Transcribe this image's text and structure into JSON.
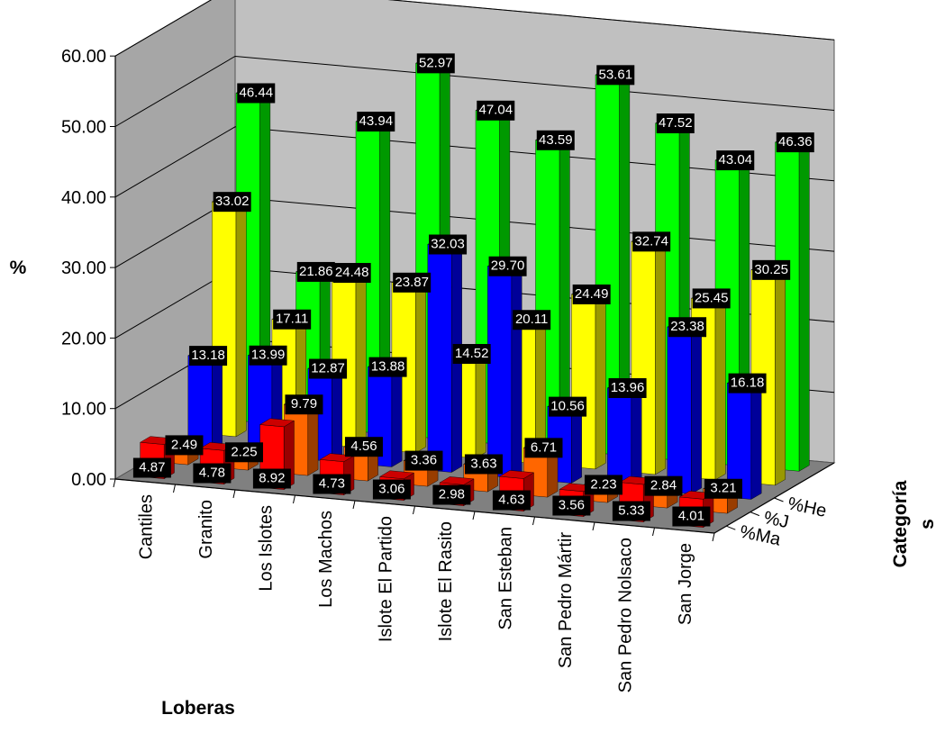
{
  "chart_data": {
    "type": "bar",
    "variant": "3d-clustered-depth",
    "xlabel": "Loberas",
    "ylabel": "%",
    "zlabel": [
      "Categoría",
      "s"
    ],
    "ylim": [
      0,
      60
    ],
    "yticks": [
      "0.00",
      "10.00",
      "20.00",
      "30.00",
      "40.00",
      "50.00",
      "60.00"
    ],
    "categories": [
      "Cantiles",
      "Granito",
      "Los Islotes",
      "Los Machos",
      "Islote El Partido",
      "Islote El Rasito",
      "San Esteban",
      "San Pedro Mártir",
      "San Pedro Nolsaco",
      "San Jorge"
    ],
    "depth_labels": [
      "%Ma",
      "%J",
      "%He"
    ],
    "series": [
      {
        "color": "#ff0000",
        "values": [
          4.87,
          4.78,
          8.92,
          4.73,
          3.06,
          2.98,
          4.63,
          3.56,
          5.33,
          4.01
        ],
        "labels": [
          "4.87",
          "4.78",
          "8.92",
          "4.73",
          "3.06",
          "2.98",
          "4.63",
          "3.56",
          "5.33",
          "4.01"
        ]
      },
      {
        "color": "#ff6600",
        "values": [
          2.49,
          2.25,
          9.79,
          4.56,
          3.36,
          3.63,
          6.71,
          2.23,
          2.84,
          3.21
        ],
        "labels": [
          "2.49",
          "2.25",
          "9.79",
          "4.56",
          "3.36",
          "3.63",
          "6.71",
          "2.23",
          "2.84",
          "3.21"
        ]
      },
      {
        "color": "#0000ff",
        "values": [
          13.18,
          13.99,
          12.87,
          13.88,
          32.03,
          29.7,
          10.56,
          13.96,
          23.38,
          16.18
        ],
        "labels": [
          "13.18",
          "13.99",
          "12.87",
          "13.88",
          "32.03",
          "29.70",
          "10.56",
          "13.96",
          "23.38",
          "16.18"
        ]
      },
      {
        "color": "#ffff00",
        "values": [
          33.02,
          17.11,
          24.48,
          23.87,
          14.52,
          20.11,
          24.49,
          32.74,
          25.45,
          30.25
        ],
        "labels": [
          "33.02",
          "17.11",
          "24.48",
          "23.87",
          "14.52",
          "20.11",
          "24.49",
          "32.74",
          "25.45",
          "30.25"
        ]
      },
      {
        "color": "#00ff00",
        "values": [
          46.44,
          21.86,
          43.94,
          52.97,
          47.04,
          43.59,
          53.61,
          47.52,
          43.04,
          46.36
        ],
        "labels": [
          "46.44",
          "21.86",
          "43.94",
          "52.97",
          "47.04",
          "43.59",
          "53.61",
          "47.52",
          "43.04",
          "46.36"
        ]
      }
    ],
    "grid": true,
    "wall_color": "#c0c0c0",
    "floor_color": "#808080",
    "label_box_color": "#000000",
    "label_text_color": "#ffffff"
  }
}
